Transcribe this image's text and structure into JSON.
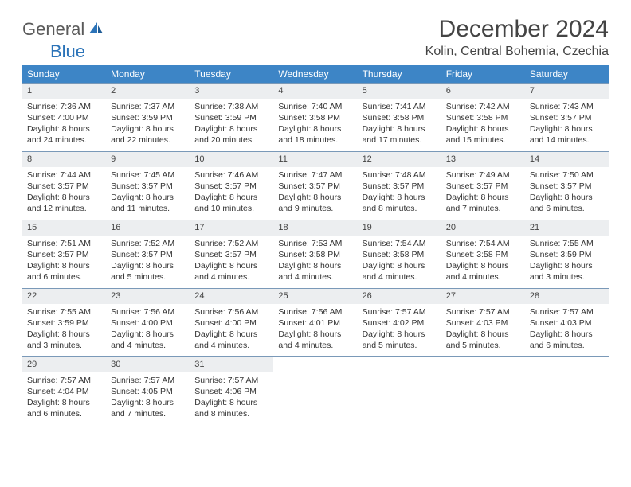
{
  "logo": {
    "general": "General",
    "blue": "Blue"
  },
  "title": "December 2024",
  "location": "Kolin, Central Bohemia, Czechia",
  "colors": {
    "header_bg": "#3d85c6",
    "header_fg": "#ffffff",
    "daynum_bg": "#eceef0",
    "row_border": "#7a99b8",
    "logo_blue": "#2b73b8",
    "logo_grey": "#5a5a5a"
  },
  "weekdays": [
    "Sunday",
    "Monday",
    "Tuesday",
    "Wednesday",
    "Thursday",
    "Friday",
    "Saturday"
  ],
  "weeks": [
    [
      {
        "n": "1",
        "sr": "Sunrise: 7:36 AM",
        "ss": "Sunset: 4:00 PM",
        "d1": "Daylight: 8 hours",
        "d2": "and 24 minutes."
      },
      {
        "n": "2",
        "sr": "Sunrise: 7:37 AM",
        "ss": "Sunset: 3:59 PM",
        "d1": "Daylight: 8 hours",
        "d2": "and 22 minutes."
      },
      {
        "n": "3",
        "sr": "Sunrise: 7:38 AM",
        "ss": "Sunset: 3:59 PM",
        "d1": "Daylight: 8 hours",
        "d2": "and 20 minutes."
      },
      {
        "n": "4",
        "sr": "Sunrise: 7:40 AM",
        "ss": "Sunset: 3:58 PM",
        "d1": "Daylight: 8 hours",
        "d2": "and 18 minutes."
      },
      {
        "n": "5",
        "sr": "Sunrise: 7:41 AM",
        "ss": "Sunset: 3:58 PM",
        "d1": "Daylight: 8 hours",
        "d2": "and 17 minutes."
      },
      {
        "n": "6",
        "sr": "Sunrise: 7:42 AM",
        "ss": "Sunset: 3:58 PM",
        "d1": "Daylight: 8 hours",
        "d2": "and 15 minutes."
      },
      {
        "n": "7",
        "sr": "Sunrise: 7:43 AM",
        "ss": "Sunset: 3:57 PM",
        "d1": "Daylight: 8 hours",
        "d2": "and 14 minutes."
      }
    ],
    [
      {
        "n": "8",
        "sr": "Sunrise: 7:44 AM",
        "ss": "Sunset: 3:57 PM",
        "d1": "Daylight: 8 hours",
        "d2": "and 12 minutes."
      },
      {
        "n": "9",
        "sr": "Sunrise: 7:45 AM",
        "ss": "Sunset: 3:57 PM",
        "d1": "Daylight: 8 hours",
        "d2": "and 11 minutes."
      },
      {
        "n": "10",
        "sr": "Sunrise: 7:46 AM",
        "ss": "Sunset: 3:57 PM",
        "d1": "Daylight: 8 hours",
        "d2": "and 10 minutes."
      },
      {
        "n": "11",
        "sr": "Sunrise: 7:47 AM",
        "ss": "Sunset: 3:57 PM",
        "d1": "Daylight: 8 hours",
        "d2": "and 9 minutes."
      },
      {
        "n": "12",
        "sr": "Sunrise: 7:48 AM",
        "ss": "Sunset: 3:57 PM",
        "d1": "Daylight: 8 hours",
        "d2": "and 8 minutes."
      },
      {
        "n": "13",
        "sr": "Sunrise: 7:49 AM",
        "ss": "Sunset: 3:57 PM",
        "d1": "Daylight: 8 hours",
        "d2": "and 7 minutes."
      },
      {
        "n": "14",
        "sr": "Sunrise: 7:50 AM",
        "ss": "Sunset: 3:57 PM",
        "d1": "Daylight: 8 hours",
        "d2": "and 6 minutes."
      }
    ],
    [
      {
        "n": "15",
        "sr": "Sunrise: 7:51 AM",
        "ss": "Sunset: 3:57 PM",
        "d1": "Daylight: 8 hours",
        "d2": "and 6 minutes."
      },
      {
        "n": "16",
        "sr": "Sunrise: 7:52 AM",
        "ss": "Sunset: 3:57 PM",
        "d1": "Daylight: 8 hours",
        "d2": "and 5 minutes."
      },
      {
        "n": "17",
        "sr": "Sunrise: 7:52 AM",
        "ss": "Sunset: 3:57 PM",
        "d1": "Daylight: 8 hours",
        "d2": "and 4 minutes."
      },
      {
        "n": "18",
        "sr": "Sunrise: 7:53 AM",
        "ss": "Sunset: 3:58 PM",
        "d1": "Daylight: 8 hours",
        "d2": "and 4 minutes."
      },
      {
        "n": "19",
        "sr": "Sunrise: 7:54 AM",
        "ss": "Sunset: 3:58 PM",
        "d1": "Daylight: 8 hours",
        "d2": "and 4 minutes."
      },
      {
        "n": "20",
        "sr": "Sunrise: 7:54 AM",
        "ss": "Sunset: 3:58 PM",
        "d1": "Daylight: 8 hours",
        "d2": "and 4 minutes."
      },
      {
        "n": "21",
        "sr": "Sunrise: 7:55 AM",
        "ss": "Sunset: 3:59 PM",
        "d1": "Daylight: 8 hours",
        "d2": "and 3 minutes."
      }
    ],
    [
      {
        "n": "22",
        "sr": "Sunrise: 7:55 AM",
        "ss": "Sunset: 3:59 PM",
        "d1": "Daylight: 8 hours",
        "d2": "and 3 minutes."
      },
      {
        "n": "23",
        "sr": "Sunrise: 7:56 AM",
        "ss": "Sunset: 4:00 PM",
        "d1": "Daylight: 8 hours",
        "d2": "and 4 minutes."
      },
      {
        "n": "24",
        "sr": "Sunrise: 7:56 AM",
        "ss": "Sunset: 4:00 PM",
        "d1": "Daylight: 8 hours",
        "d2": "and 4 minutes."
      },
      {
        "n": "25",
        "sr": "Sunrise: 7:56 AM",
        "ss": "Sunset: 4:01 PM",
        "d1": "Daylight: 8 hours",
        "d2": "and 4 minutes."
      },
      {
        "n": "26",
        "sr": "Sunrise: 7:57 AM",
        "ss": "Sunset: 4:02 PM",
        "d1": "Daylight: 8 hours",
        "d2": "and 5 minutes."
      },
      {
        "n": "27",
        "sr": "Sunrise: 7:57 AM",
        "ss": "Sunset: 4:03 PM",
        "d1": "Daylight: 8 hours",
        "d2": "and 5 minutes."
      },
      {
        "n": "28",
        "sr": "Sunrise: 7:57 AM",
        "ss": "Sunset: 4:03 PM",
        "d1": "Daylight: 8 hours",
        "d2": "and 6 minutes."
      }
    ],
    [
      {
        "n": "29",
        "sr": "Sunrise: 7:57 AM",
        "ss": "Sunset: 4:04 PM",
        "d1": "Daylight: 8 hours",
        "d2": "and 6 minutes."
      },
      {
        "n": "30",
        "sr": "Sunrise: 7:57 AM",
        "ss": "Sunset: 4:05 PM",
        "d1": "Daylight: 8 hours",
        "d2": "and 7 minutes."
      },
      {
        "n": "31",
        "sr": "Sunrise: 7:57 AM",
        "ss": "Sunset: 4:06 PM",
        "d1": "Daylight: 8 hours",
        "d2": "and 8 minutes."
      },
      null,
      null,
      null,
      null
    ]
  ]
}
